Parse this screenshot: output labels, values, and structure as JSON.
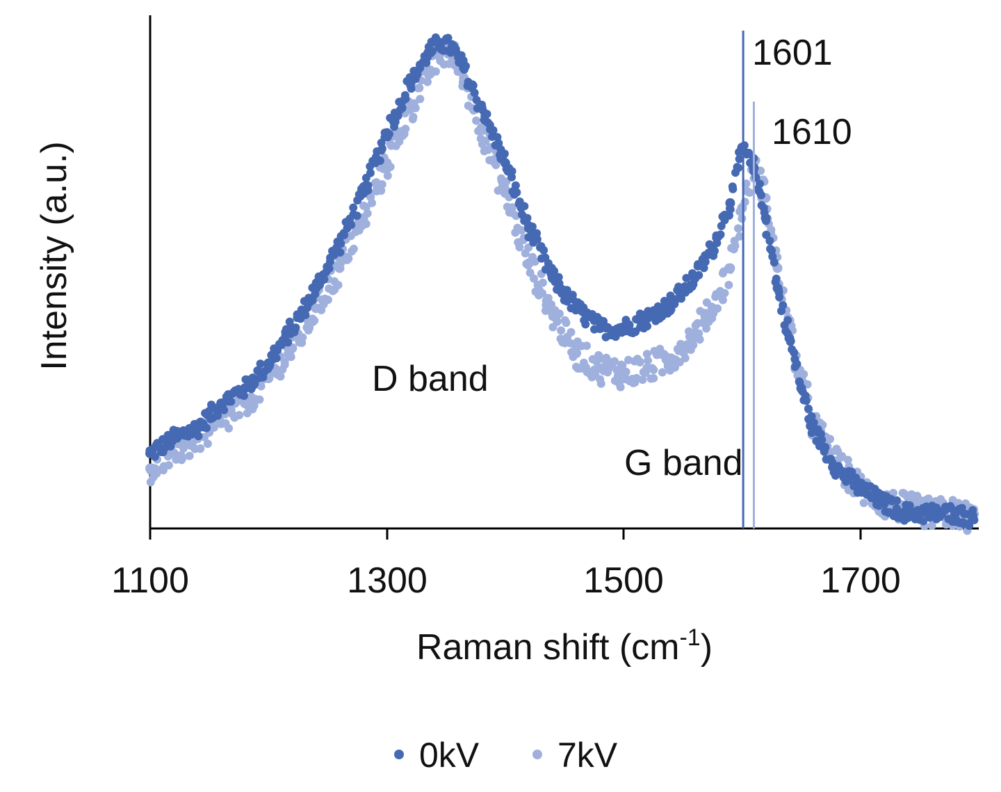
{
  "chart_data": {
    "type": "scatter",
    "title": "",
    "xlabel": "Raman shift (cm",
    "xlabel_sup": "-1",
    "xlabel_close": ")",
    "ylabel": "Intensity (a.u.)",
    "xlim": [
      1100,
      1800
    ],
    "ylim": [
      0,
      1
    ],
    "grid": false,
    "x_ticks": [
      1100,
      1300,
      1500,
      1700
    ],
    "x_tick_labels": [
      "1100",
      "1300",
      "1500",
      "1700"
    ],
    "legend_position": "bottom",
    "series": [
      {
        "name": "0kV",
        "color": "#4569b2",
        "x": [
          1100,
          1120,
          1140,
          1160,
          1180,
          1200,
          1220,
          1240,
          1260,
          1280,
          1300,
          1320,
          1335,
          1345,
          1355,
          1365,
          1380,
          1400,
          1420,
          1440,
          1460,
          1480,
          1500,
          1520,
          1540,
          1560,
          1575,
          1590,
          1600,
          1610,
          1620,
          1630,
          1640,
          1650,
          1660,
          1680,
          1700,
          1720,
          1740,
          1760,
          1780,
          1795
        ],
        "y": [
          0.15,
          0.18,
          0.2,
          0.25,
          0.28,
          0.33,
          0.4,
          0.48,
          0.57,
          0.67,
          0.79,
          0.89,
          0.95,
          0.97,
          0.96,
          0.92,
          0.84,
          0.73,
          0.6,
          0.5,
          0.44,
          0.4,
          0.4,
          0.42,
          0.45,
          0.5,
          0.56,
          0.65,
          0.76,
          0.72,
          0.62,
          0.48,
          0.38,
          0.28,
          0.2,
          0.12,
          0.08,
          0.05,
          0.03,
          0.03,
          0.03,
          0.02
        ]
      },
      {
        "name": "7kV",
        "color": "#9fb0dd",
        "x": [
          1100,
          1120,
          1140,
          1160,
          1180,
          1200,
          1220,
          1240,
          1260,
          1280,
          1300,
          1320,
          1335,
          1345,
          1355,
          1365,
          1380,
          1400,
          1420,
          1440,
          1460,
          1480,
          1500,
          1520,
          1540,
          1560,
          1575,
          1590,
          1600,
          1610,
          1620,
          1630,
          1640,
          1650,
          1660,
          1680,
          1700,
          1720,
          1740,
          1760,
          1780,
          1795
        ],
        "y": [
          0.12,
          0.15,
          0.18,
          0.21,
          0.25,
          0.3,
          0.36,
          0.44,
          0.52,
          0.62,
          0.73,
          0.84,
          0.91,
          0.95,
          0.95,
          0.9,
          0.8,
          0.67,
          0.53,
          0.43,
          0.35,
          0.32,
          0.31,
          0.32,
          0.34,
          0.39,
          0.44,
          0.52,
          0.64,
          0.73,
          0.66,
          0.52,
          0.4,
          0.3,
          0.21,
          0.13,
          0.08,
          0.05,
          0.04,
          0.03,
          0.03,
          0.02
        ]
      }
    ],
    "vlines": [
      {
        "x": 1601,
        "label": "1601",
        "color": "#4569b2"
      },
      {
        "x": 1610,
        "label": "1610",
        "color": "#9fb0dd"
      }
    ],
    "annotations": [
      {
        "text": "D band"
      },
      {
        "text": "G band"
      }
    ]
  }
}
